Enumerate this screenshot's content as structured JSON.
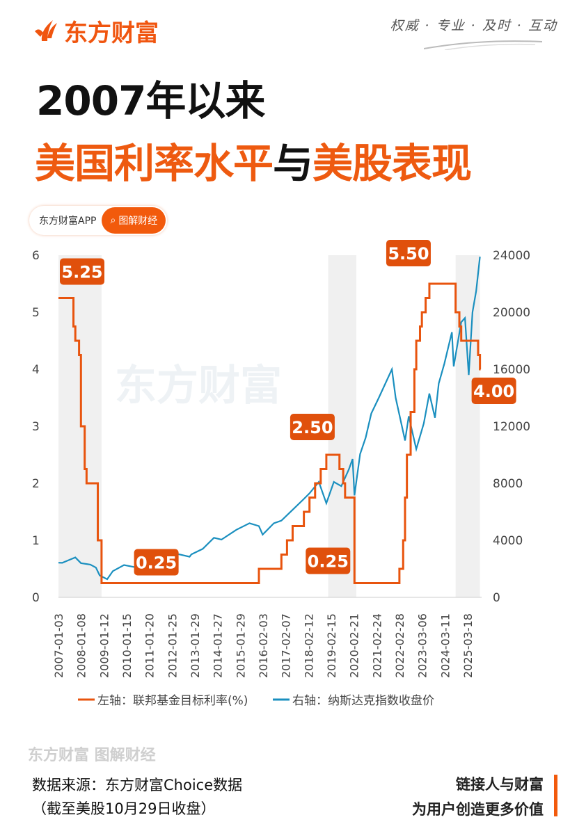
{
  "header": {
    "brand": "东方财富",
    "slogan": "权威 · 专业 · 及时 · 互动"
  },
  "title": {
    "line1": "2007年以来",
    "line2_a": "美国利率水平",
    "line2_b": "与",
    "line2_c": "美股表现"
  },
  "pill": {
    "app": "东方财富APP",
    "search": "图解财经"
  },
  "watermark": {
    "center": "东方财富",
    "bottom": "东方财富 图解财经"
  },
  "footer": {
    "source": "数据来源：东方财富Choice数据",
    "cutoff": "（截至美股10月29日收盘）",
    "tag1": "链接人与财富",
    "tag2": "为用户创造更多价值"
  },
  "colors": {
    "brand": "#f0550f",
    "rate": "#e8540e",
    "nasdaq": "#1a8fbf",
    "shade": "#f0f0f0"
  },
  "chart_data": {
    "type": "line",
    "x_tick_labels": [
      "2007-01-03",
      "2008-01-08",
      "2009-01-12",
      "2010-01-15",
      "2011-01-20",
      "2012-01-25",
      "2013-01-29",
      "2014-01-27",
      "2015-01-29",
      "2016-02-03",
      "2017-02-07",
      "2018-02-12",
      "2019-02-15",
      "2020-02-21",
      "2021-02-24",
      "2022-02-28",
      "2023-03-06",
      "2024-03-11",
      "2025-03-18"
    ],
    "y_left": {
      "ticks": [
        "0",
        "1",
        "2",
        "3",
        "4",
        "5",
        "6"
      ],
      "range": [
        0,
        6
      ]
    },
    "y_right": {
      "ticks": [
        "0",
        "4000",
        "8000",
        "12000",
        "16000",
        "20000",
        "24000"
      ],
      "range": [
        0,
        24000
      ]
    },
    "shaded_periods": [
      [
        "2007-01",
        "2008-12"
      ],
      [
        "2019-01",
        "2020-04"
      ],
      [
        "2024-09",
        "2025-10"
      ]
    ],
    "series": [
      {
        "name": "左轴：联邦基金目标利率(%)",
        "axis": "left",
        "step": true,
        "points": [
          [
            "2007-01",
            5.25
          ],
          [
            "2007-09",
            4.75
          ],
          [
            "2007-10",
            4.5
          ],
          [
            "2007-12",
            4.25
          ],
          [
            "2008-01",
            3.0
          ],
          [
            "2008-03",
            2.25
          ],
          [
            "2008-04",
            2.0
          ],
          [
            "2008-10",
            1.0
          ],
          [
            "2008-12",
            0.25
          ],
          [
            "2015-12",
            0.5
          ],
          [
            "2016-12",
            0.75
          ],
          [
            "2017-03",
            1.0
          ],
          [
            "2017-06",
            1.25
          ],
          [
            "2017-12",
            1.5
          ],
          [
            "2018-03",
            1.75
          ],
          [
            "2018-06",
            2.0
          ],
          [
            "2018-09",
            2.25
          ],
          [
            "2018-12",
            2.5
          ],
          [
            "2019-07",
            2.25
          ],
          [
            "2019-09",
            2.0
          ],
          [
            "2019-10",
            1.75
          ],
          [
            "2020-03",
            0.25
          ],
          [
            "2022-03",
            0.5
          ],
          [
            "2022-05",
            1.0
          ],
          [
            "2022-06",
            1.75
          ],
          [
            "2022-07",
            2.5
          ],
          [
            "2022-09",
            3.25
          ],
          [
            "2022-11",
            4.0
          ],
          [
            "2022-12",
            4.5
          ],
          [
            "2023-02",
            4.75
          ],
          [
            "2023-03",
            5.0
          ],
          [
            "2023-05",
            5.25
          ],
          [
            "2023-07",
            5.5
          ],
          [
            "2024-09",
            5.0
          ],
          [
            "2024-11",
            4.75
          ],
          [
            "2024-12",
            4.5
          ],
          [
            "2025-09",
            4.25
          ],
          [
            "2025-10",
            4.0
          ]
        ]
      },
      {
        "name": "右轴：纳斯达克指数收盘价",
        "axis": "right",
        "step": false,
        "points": [
          [
            "2007-01",
            2430
          ],
          [
            "2007-03",
            2420
          ],
          [
            "2007-07",
            2640
          ],
          [
            "2007-10",
            2800
          ],
          [
            "2008-01",
            2400
          ],
          [
            "2008-06",
            2300
          ],
          [
            "2008-09",
            2090
          ],
          [
            "2008-11",
            1540
          ],
          [
            "2009-03",
            1270
          ],
          [
            "2009-06",
            1840
          ],
          [
            "2009-12",
            2270
          ],
          [
            "2010-06",
            2110
          ],
          [
            "2010-12",
            2650
          ],
          [
            "2011-04",
            2870
          ],
          [
            "2011-10",
            2450
          ],
          [
            "2011-12",
            2600
          ],
          [
            "2012-04",
            3060
          ],
          [
            "2012-11",
            2850
          ],
          [
            "2012-12",
            3020
          ],
          [
            "2013-06",
            3400
          ],
          [
            "2013-12",
            4180
          ],
          [
            "2014-04",
            4050
          ],
          [
            "2014-12",
            4740
          ],
          [
            "2015-07",
            5200
          ],
          [
            "2015-12",
            5000
          ],
          [
            "2016-02",
            4400
          ],
          [
            "2016-08",
            5200
          ],
          [
            "2016-12",
            5380
          ],
          [
            "2017-06",
            6140
          ],
          [
            "2017-12",
            6900
          ],
          [
            "2018-03",
            7300
          ],
          [
            "2018-08",
            8100
          ],
          [
            "2018-12",
            6600
          ],
          [
            "2019-04",
            8100
          ],
          [
            "2019-08",
            7800
          ],
          [
            "2019-12",
            8970
          ],
          [
            "2020-02",
            9700
          ],
          [
            "2020-03",
            7150
          ],
          [
            "2020-06",
            10050
          ],
          [
            "2020-09",
            11200
          ],
          [
            "2020-12",
            12900
          ],
          [
            "2021-04",
            14000
          ],
          [
            "2021-11",
            16000
          ],
          [
            "2022-01",
            14000
          ],
          [
            "2022-06",
            11000
          ],
          [
            "2022-08",
            12700
          ],
          [
            "2022-12",
            10400
          ],
          [
            "2023-04",
            12200
          ],
          [
            "2023-07",
            14300
          ],
          [
            "2023-10",
            12600
          ],
          [
            "2023-12",
            15000
          ],
          [
            "2024-03",
            16400
          ],
          [
            "2024-07",
            18600
          ],
          [
            "2024-08",
            16200
          ],
          [
            "2024-12",
            19300
          ],
          [
            "2025-02",
            19600
          ],
          [
            "2025-04",
            15600
          ],
          [
            "2025-06",
            20000
          ],
          [
            "2025-08",
            21500
          ],
          [
            "2025-10",
            23900
          ]
        ]
      }
    ],
    "annotations": [
      {
        "text": "5.25",
        "date": "2007-01",
        "value": 5.25
      },
      {
        "text": "0.25",
        "date": "2009-01",
        "value": 0.25
      },
      {
        "text": "2.50",
        "date": "2018-12",
        "value": 2.5
      },
      {
        "text": "0.25",
        "date": "2020-03",
        "value": 0.25
      },
      {
        "text": "5.50",
        "date": "2023-07",
        "value": 5.5
      },
      {
        "text": "4.00",
        "date": "2025-10",
        "value": 4.0
      }
    ],
    "legend": "bottom"
  }
}
